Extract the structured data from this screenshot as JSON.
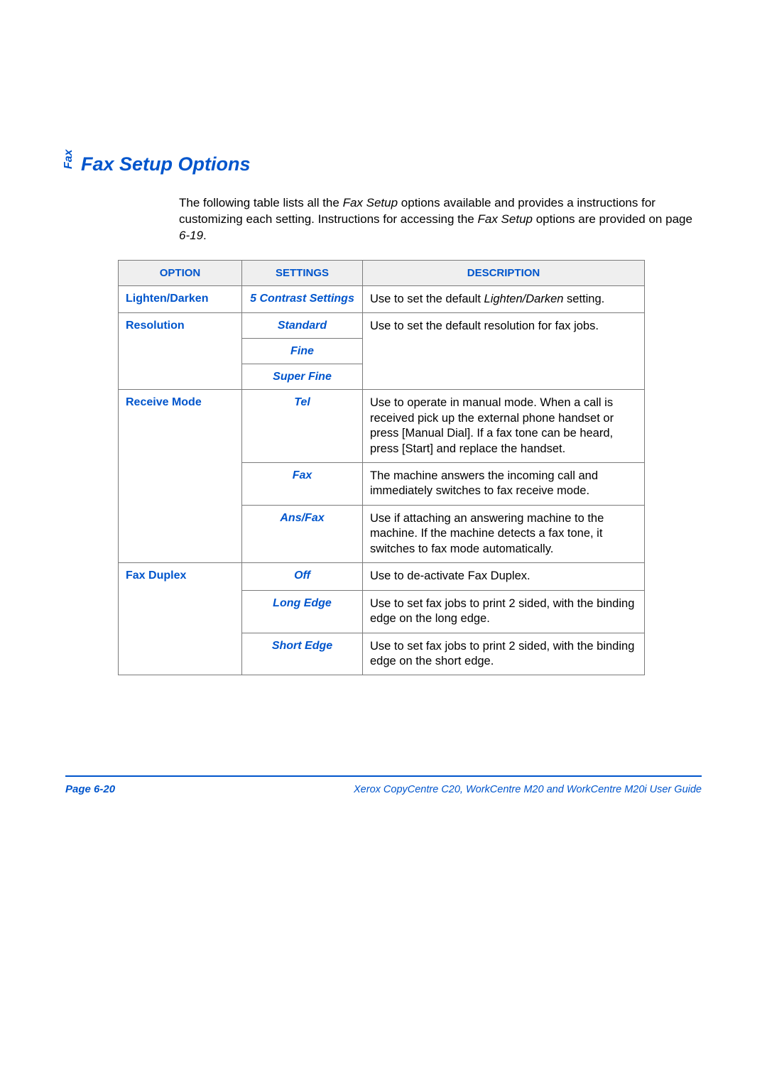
{
  "side_label": "Fax",
  "title": "Fax Setup Options",
  "intro": {
    "prefix": "The following table lists all the ",
    "em1": "Fax Setup",
    "mid": " options available and provides a instructions for customizing each setting. Instructions for accessing the ",
    "em2": "Fax Setup",
    "suffix1": " options are provided on page ",
    "em3": "6-19",
    "suffix2": "."
  },
  "headers": {
    "option": "OPTION",
    "settings": "SETTINGS",
    "description": "DESCRIPTION"
  },
  "rows": {
    "lighten": {
      "option": "Lighten/Darken",
      "setting": "5 Contrast Settings",
      "desc_pre": "Use to set the default ",
      "desc_em": "Lighten/Darken",
      "desc_post": " setting."
    },
    "resolution": {
      "option": "Resolution",
      "s1": "Standard",
      "s2": "Fine",
      "s3": "Super Fine",
      "desc": "Use to set the default resolution for fax jobs."
    },
    "receive": {
      "option": "Receive Mode",
      "tel": {
        "label": "Tel",
        "desc": "Use to operate in manual mode. When a call is received pick up the external phone handset or press [Manual Dial]. If a fax tone can be heard, press [Start] and replace the handset."
      },
      "fax": {
        "label": "Fax",
        "desc": "The machine answers the incoming call and immediately switches to fax receive mode."
      },
      "ans": {
        "label": "Ans/Fax",
        "desc": "Use if attaching an answering machine to the machine. If the machine detects a fax tone, it switches to fax mode automatically."
      }
    },
    "duplex": {
      "option": "Fax Duplex",
      "off": {
        "label": "Off",
        "desc": "Use to de-activate Fax Duplex."
      },
      "long": {
        "label": "Long Edge",
        "desc": "Use to set fax jobs to print 2 sided, with the binding edge on the long edge."
      },
      "short": {
        "label": "Short Edge",
        "desc": "Use to set fax jobs to print 2 sided, with the binding edge on the short edge."
      }
    }
  },
  "footer": {
    "page": "Page 6-20",
    "guide": "Xerox CopyCentre C20, WorkCentre M20 and WorkCentre M20i User Guide"
  }
}
